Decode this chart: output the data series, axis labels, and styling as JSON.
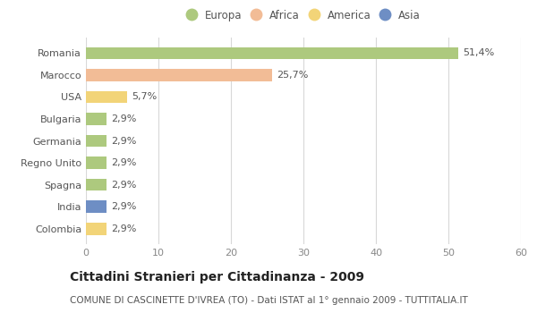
{
  "categories": [
    "Romania",
    "Marocco",
    "USA",
    "Bulgaria",
    "Germania",
    "Regno Unito",
    "Spagna",
    "India",
    "Colombia"
  ],
  "values": [
    51.4,
    25.7,
    5.7,
    2.9,
    2.9,
    2.9,
    2.9,
    2.9,
    2.9
  ],
  "labels": [
    "51,4%",
    "25,7%",
    "5,7%",
    "2,9%",
    "2,9%",
    "2,9%",
    "2,9%",
    "2,9%",
    "2,9%"
  ],
  "colors": [
    "#adc97e",
    "#f2bc96",
    "#f2d478",
    "#adc97e",
    "#adc97e",
    "#adc97e",
    "#adc97e",
    "#6e8ec4",
    "#f2d478"
  ],
  "legend_labels": [
    "Europa",
    "Africa",
    "America",
    "Asia"
  ],
  "legend_colors": [
    "#adc97e",
    "#f2bc96",
    "#f2d478",
    "#6e8ec4"
  ],
  "xlim": [
    0,
    60
  ],
  "xticks": [
    0,
    10,
    20,
    30,
    40,
    50,
    60
  ],
  "title": "Cittadini Stranieri per Cittadinanza - 2009",
  "subtitle": "COMUNE DI CASCINETTE D'IVREA (TO) - Dati ISTAT al 1° gennaio 2009 - TUTTITALIA.IT",
  "bg_color": "#ffffff",
  "bar_height": 0.55,
  "grid_color": "#d8d8d8",
  "title_fontsize": 10,
  "subtitle_fontsize": 7.5,
  "tick_fontsize": 8,
  "label_fontsize": 8,
  "legend_fontsize": 8.5
}
